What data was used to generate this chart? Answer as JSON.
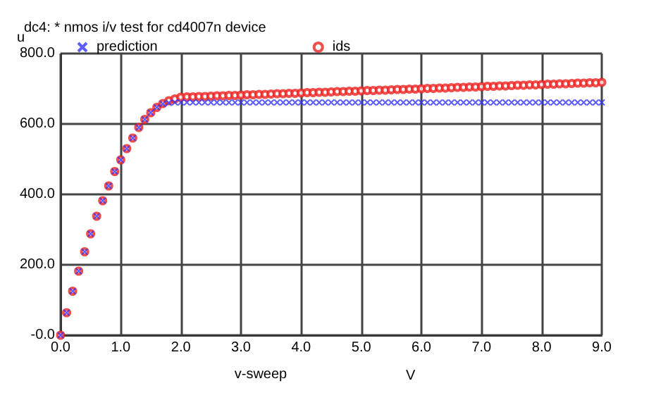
{
  "chart_data": {
    "type": "scatter",
    "title": "dc4: * nmos i/v test for cd4007n device",
    "ylabel": "u",
    "xlabel": "v-sweep",
    "annotations": [
      "V"
    ],
    "x": [
      0,
      0.1,
      0.2,
      0.3,
      0.4,
      0.5,
      0.6,
      0.7,
      0.8,
      0.9,
      1.0,
      1.1,
      1.2,
      1.3,
      1.4,
      1.5,
      1.6,
      1.7,
      1.8,
      1.9,
      2.0,
      2.1,
      2.2,
      2.3,
      2.4,
      2.5,
      2.6,
      2.7,
      2.8,
      2.9,
      3.0,
      3.1,
      3.2,
      3.3,
      3.4,
      3.5,
      3.6,
      3.7,
      3.8,
      3.9,
      4.0,
      4.1,
      4.2,
      4.3,
      4.4,
      4.5,
      4.6,
      4.7,
      4.8,
      4.9,
      5.0,
      5.1,
      5.2,
      5.3,
      5.4,
      5.5,
      5.6,
      5.7,
      5.8,
      5.9,
      6.0,
      6.1,
      6.2,
      6.3,
      6.4,
      6.5,
      6.6,
      6.7,
      6.8,
      6.9,
      7.0,
      7.1,
      7.2,
      7.3,
      7.4,
      7.5,
      7.6,
      7.7,
      7.8,
      7.9,
      8.0,
      8.1,
      8.2,
      8.3,
      8.4,
      8.5,
      8.6,
      8.7,
      8.8,
      8.9,
      9.0
    ],
    "series": [
      {
        "name": "prediction",
        "color": "#3333ff",
        "marker": "cross",
        "values": [
          0,
          64,
          125,
          182,
          237,
          288,
          338,
          382,
          424,
          465,
          498,
          530,
          560,
          590,
          613,
          632,
          647,
          657,
          660,
          661,
          661,
          661,
          661,
          661,
          661,
          661,
          661,
          661,
          661,
          661,
          661,
          661,
          661,
          661,
          661,
          661,
          661,
          661,
          661,
          661,
          661,
          661,
          661,
          661,
          661,
          661,
          661,
          661,
          661,
          661,
          661,
          661,
          661,
          661,
          661,
          661,
          661,
          661,
          661,
          661,
          661,
          661,
          661,
          661,
          661,
          661,
          661,
          661,
          661,
          661,
          661,
          661,
          661,
          661,
          661,
          661,
          661,
          661,
          661,
          661,
          661,
          661,
          661,
          661,
          661,
          661,
          661,
          661,
          661,
          661,
          661
        ]
      },
      {
        "name": "ids",
        "color": "#ee2222",
        "marker": "circle",
        "values": [
          0,
          64,
          125,
          182,
          237,
          288,
          338,
          382,
          424,
          465,
          498,
          530,
          560,
          590,
          613,
          632,
          647,
          658,
          666,
          671,
          676,
          677,
          677,
          678,
          678,
          679,
          680,
          680,
          681,
          681,
          682,
          683,
          683,
          684,
          684,
          685,
          686,
          686,
          687,
          687,
          688,
          689,
          689,
          690,
          690,
          691,
          692,
          692,
          693,
          693,
          694,
          695,
          695,
          696,
          696,
          697,
          698,
          698,
          699,
          699,
          700,
          701,
          701,
          702,
          702,
          703,
          704,
          704,
          705,
          705,
          706,
          707,
          707,
          708,
          708,
          709,
          710,
          710,
          711,
          711,
          712,
          713,
          713,
          714,
          714,
          715,
          716,
          716,
          717,
          717,
          718
        ]
      }
    ],
    "xlim": [
      0,
      9
    ],
    "ylim": [
      0,
      800
    ],
    "xticks": [
      {
        "value": 0,
        "label": "0.0"
      },
      {
        "value": 1,
        "label": "1.0"
      },
      {
        "value": 2,
        "label": "2.0"
      },
      {
        "value": 3,
        "label": "3.0"
      },
      {
        "value": 4,
        "label": "4.0"
      },
      {
        "value": 5,
        "label": "5.0"
      },
      {
        "value": 6,
        "label": "6.0"
      },
      {
        "value": 7,
        "label": "7.0"
      },
      {
        "value": 8,
        "label": "8.0"
      },
      {
        "value": 9,
        "label": "9.0"
      }
    ],
    "yticks": [
      {
        "value": 0,
        "label": "-0.0"
      },
      {
        "value": 200,
        "label": "200.0"
      },
      {
        "value": 400,
        "label": "400.0"
      },
      {
        "value": 600,
        "label": "600.0"
      },
      {
        "value": 800,
        "label": "800.0"
      }
    ],
    "grid": true,
    "legend": "top left"
  }
}
